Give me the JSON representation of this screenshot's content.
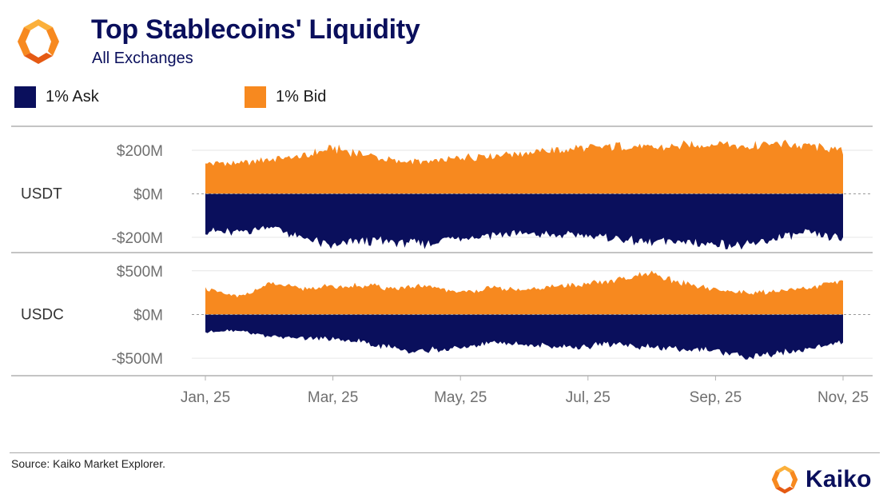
{
  "header": {
    "title": "Top Stablecoins' Liquidity",
    "subtitle": "All Exchanges"
  },
  "legend": [
    {
      "label": "1% Ask",
      "color": "#0a0f5c"
    },
    {
      "label": "1% Bid",
      "color": "#f7891f"
    }
  ],
  "source": "Source: Kaiko Market Explorer.",
  "brand": {
    "name": "Kaiko",
    "primary": "#f7891f",
    "secondary": "#0a0f5c"
  },
  "chart_data": {
    "type": "area",
    "x_ticks": [
      "Jan, 25",
      "Mar, 25",
      "May, 25",
      "Jul, 25",
      "Sep, 25",
      "Nov, 25"
    ],
    "x_range": [
      0,
      10
    ],
    "panels": [
      {
        "label": "USDT",
        "ylim": [
          -270,
          310
        ],
        "ticks": [
          {
            "value": 200,
            "label": "$200M"
          },
          {
            "value": 0,
            "label": "$0M"
          },
          {
            "value": -200,
            "label": "-$200M"
          }
        ],
        "series": [
          {
            "name": "1% Bid",
            "color": "#f7891f",
            "x": [
              0,
              0.5,
              1,
              1.5,
              2,
              2.5,
              3,
              3.5,
              4,
              4.5,
              5,
              5.5,
              6,
              6.5,
              7,
              7.5,
              8,
              8.5,
              9,
              9.5,
              10
            ],
            "values": [
              140,
              140,
              160,
              170,
              210,
              180,
              150,
              145,
              165,
              180,
              190,
              200,
              210,
              220,
              210,
              220,
              230,
              220,
              230,
              220,
              190
            ]
          },
          {
            "name": "1% Ask",
            "color": "#0a0f5c",
            "x": [
              0,
              0.5,
              1,
              1.5,
              2,
              2.5,
              3,
              3.5,
              4,
              4.5,
              5,
              5.5,
              6,
              6.5,
              7,
              7.5,
              8,
              8.5,
              9,
              9.5,
              10
            ],
            "values": [
              -170,
              -180,
              -150,
              -200,
              -240,
              -220,
              -220,
              -230,
              -200,
              -190,
              -180,
              -190,
              -190,
              -210,
              -220,
              -220,
              -230,
              -240,
              -200,
              -180,
              -210
            ]
          }
        ]
      },
      {
        "label": "USDC",
        "ylim": [
          -700,
          690
        ],
        "ticks": [
          {
            "value": 500,
            "label": "$500M"
          },
          {
            "value": 0,
            "label": "$0M"
          },
          {
            "value": -500,
            "label": "-$500M"
          }
        ],
        "series": [
          {
            "name": "1% Bid",
            "color": "#f7891f",
            "x": [
              0,
              0.5,
              1,
              1.5,
              2,
              2.5,
              3,
              3.5,
              4,
              4.5,
              5,
              5.5,
              6,
              6.5,
              7,
              7.5,
              8,
              8.5,
              9,
              9.5,
              10
            ],
            "values": [
              300,
              200,
              350,
              300,
              320,
              330,
              300,
              320,
              250,
              300,
              280,
              320,
              360,
              400,
              460,
              360,
              280,
              250,
              260,
              310,
              380
            ]
          },
          {
            "name": "1% Ask",
            "color": "#0a0f5c",
            "x": [
              0,
              0.5,
              1,
              1.5,
              2,
              2.5,
              3,
              3.5,
              4,
              4.5,
              5,
              5.5,
              6,
              6.5,
              7,
              7.5,
              8,
              8.5,
              9,
              9.5,
              10
            ],
            "values": [
              -200,
              -180,
              -250,
              -270,
              -280,
              -320,
              -400,
              -420,
              -380,
              -320,
              -340,
              -370,
              -360,
              -340,
              -380,
              -400,
              -420,
              -480,
              -440,
              -380,
              -320
            ]
          }
        ]
      }
    ]
  }
}
